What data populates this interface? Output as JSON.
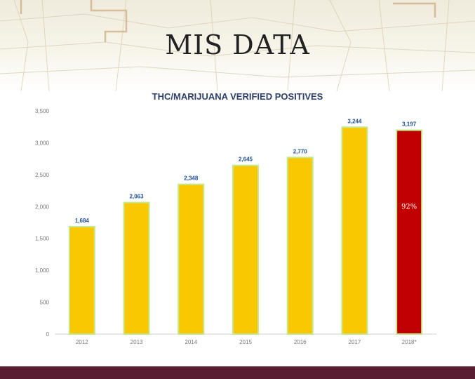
{
  "slide": {
    "title": "MIS DATA"
  },
  "chart_data": {
    "type": "bar",
    "title": "THC/MARIJUANA VERIFIED POSITIVES",
    "categories": [
      "2012",
      "2013",
      "2014",
      "2015",
      "2016",
      "2017",
      "2018*"
    ],
    "values": [
      1684,
      2063,
      2348,
      2645,
      2770,
      3244,
      3197
    ],
    "value_labels": [
      "1,684",
      "2,063",
      "2,348",
      "2,645",
      "2,770",
      "3,244",
      "3,197"
    ],
    "ylim": [
      0,
      3500
    ],
    "yticks": [
      0,
      500,
      1000,
      1500,
      2000,
      2500,
      3000,
      3500
    ],
    "ytick_labels": [
      "0",
      "500",
      "1,000",
      "1,500",
      "2,000",
      "2,500",
      "3,000",
      "3,500"
    ],
    "xlabel": "",
    "ylabel": "",
    "grid": false,
    "bar_colors": [
      "#f9c800",
      "#f9c800",
      "#f9c800",
      "#f9c800",
      "#f9c800",
      "#f9c800",
      "#c00000"
    ],
    "bar_outline_color": "#c6e88a",
    "label_color": "#1f4e96",
    "annotation": {
      "category": "2018*",
      "text": "92%"
    }
  }
}
